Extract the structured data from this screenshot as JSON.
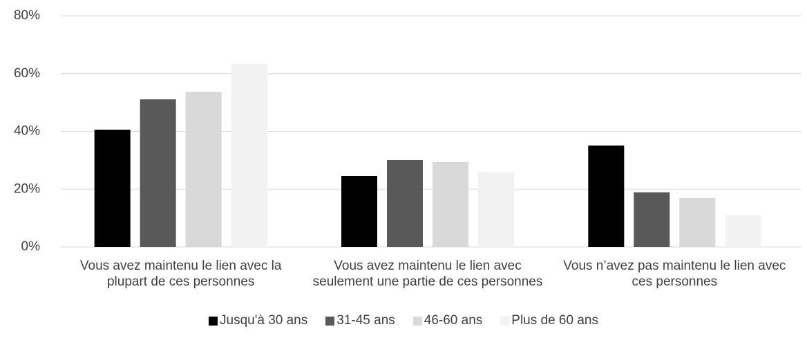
{
  "chart_data": {
    "type": "bar",
    "categories": [
      "Vous avez maintenu le lien avec la plupart de ces personnes",
      "Vous avez maintenu le lien avec seulement une partie de ces personnes",
      "Vous n’avez pas maintenu le lien avec ces personnes"
    ],
    "series": [
      {
        "name": "Jusqu'à 30 ans",
        "color": "#000000",
        "values": [
          40.6,
          24.6,
          35.1
        ]
      },
      {
        "name": "31-45 ans",
        "color": "#595959",
        "values": [
          51.1,
          30.1,
          18.9
        ]
      },
      {
        "name": "46-60 ans",
        "color": "#d9d9d9",
        "values": [
          53.7,
          29.4,
          17.0
        ]
      },
      {
        "name": "Plus de 60 ans",
        "color": "#f2f2f2",
        "values": [
          63.3,
          25.8,
          11.0
        ]
      }
    ],
    "ylim": [
      0,
      80
    ],
    "yticks": [
      {
        "value": 0,
        "label": "0%"
      },
      {
        "value": 20,
        "label": "20%"
      },
      {
        "value": 40,
        "label": "40%"
      },
      {
        "value": 60,
        "label": "60%"
      },
      {
        "value": 80,
        "label": "80%"
      }
    ],
    "grid": true,
    "legend": "bottom"
  }
}
